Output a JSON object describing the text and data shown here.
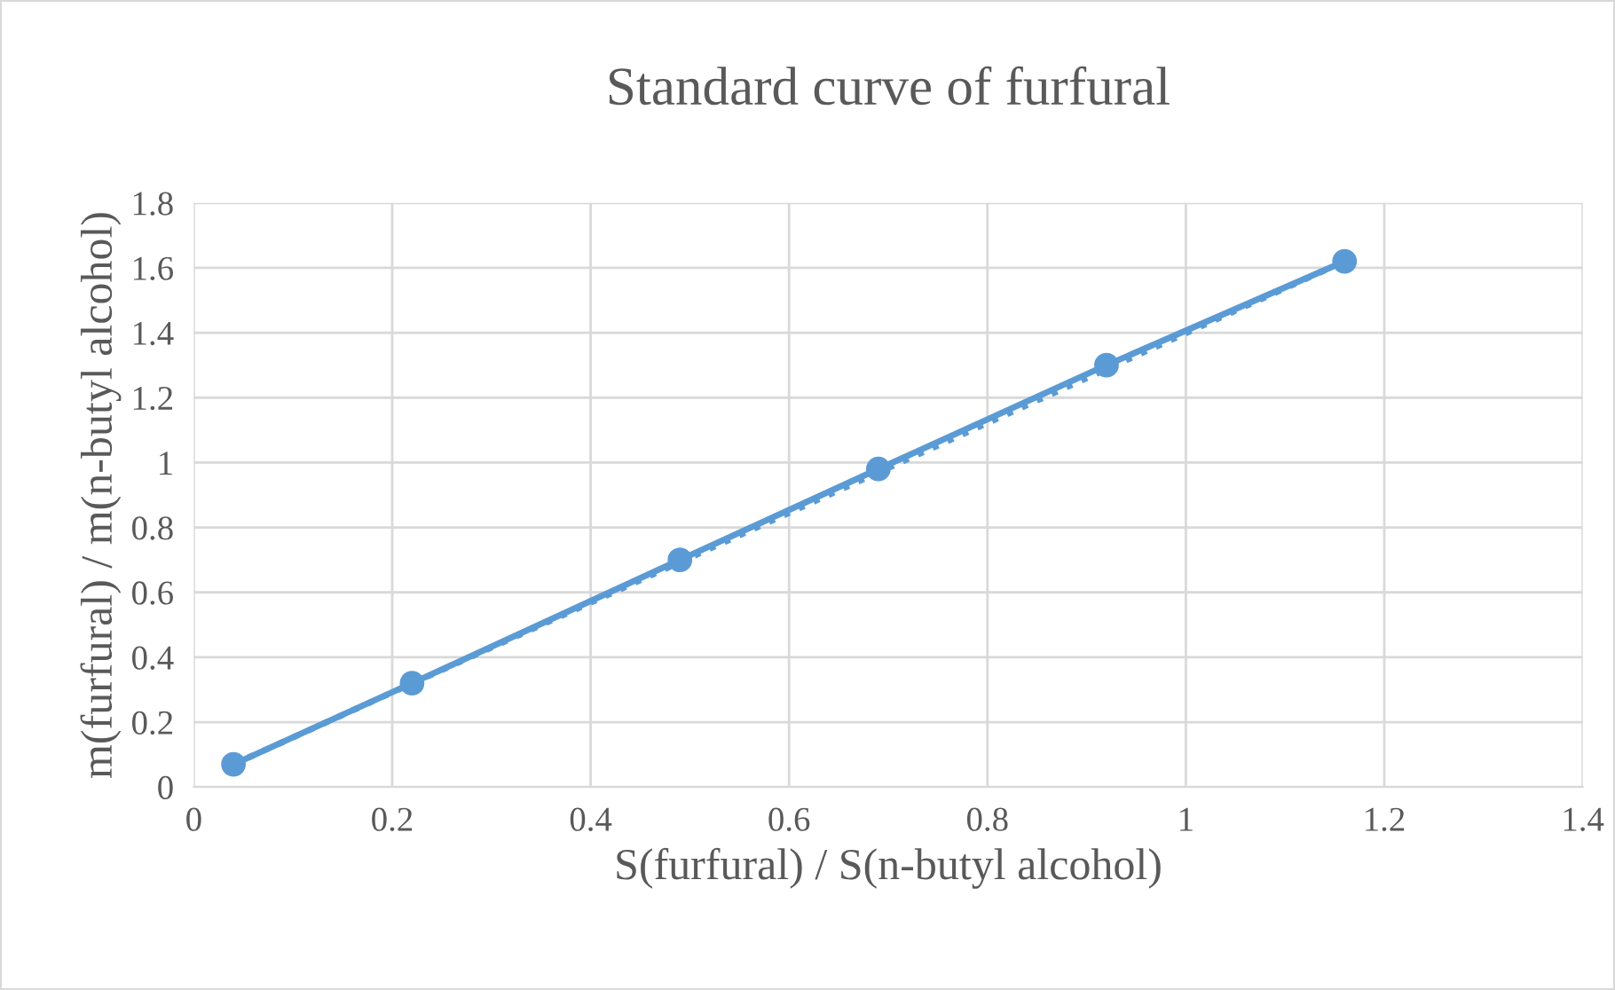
{
  "chart_data": {
    "type": "line",
    "title": "Standard curve of furfural",
    "xlabel": "S(furfural) / S(n-butyl alcohol)",
    "ylabel": "m(furfural) / m(n-butyl alcohol)",
    "series": [
      {
        "color": "#5b9bd5",
        "x": [
          0.04,
          0.22,
          0.49,
          0.69,
          0.92,
          1.16
        ],
        "values": [
          0.07,
          0.32,
          0.7,
          0.98,
          1.3,
          1.62
        ],
        "marker": "circle",
        "line_style": "solid"
      },
      {
        "color": "#5b9bd5",
        "x": [
          0.04,
          1.16
        ],
        "values": [
          0.07,
          1.62
        ],
        "marker": "none",
        "line_style": "dotted"
      }
    ],
    "xlim": [
      0,
      1.4
    ],
    "xticks": [
      0,
      0.2,
      0.4,
      0.6,
      0.8,
      1,
      1.2,
      1.4
    ],
    "ylim": [
      0,
      1.8
    ],
    "yticks": [
      0,
      0.2,
      0.4,
      0.6,
      0.8,
      1,
      1.2,
      1.4,
      1.6,
      1.8
    ],
    "grid": true,
    "legend": false
  }
}
